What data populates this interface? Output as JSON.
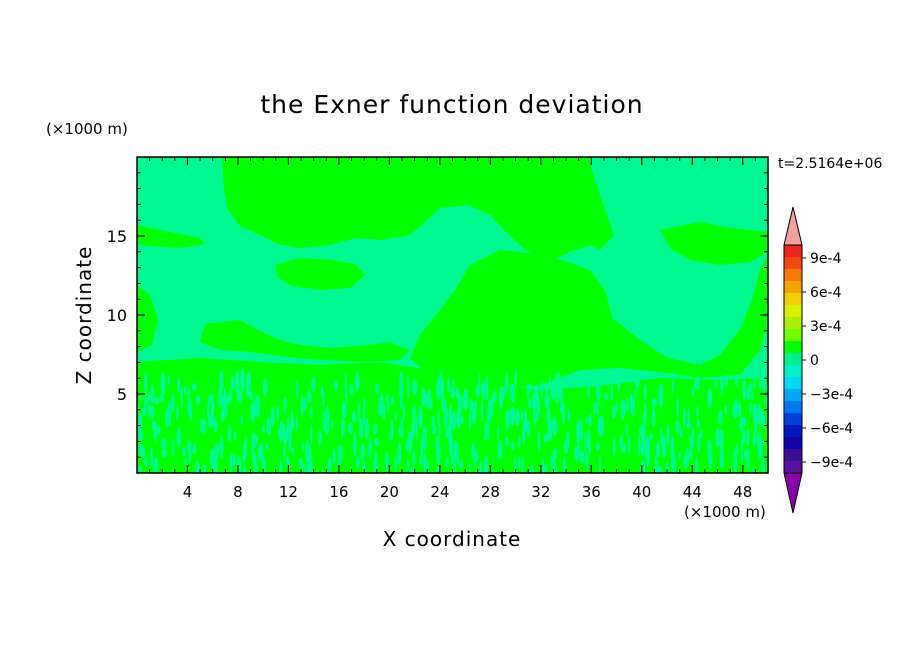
{
  "chart_data": {
    "type": "heatmap",
    "title": "the Exner function deviation",
    "xlabel": "X coordinate",
    "ylabel": "Z coordinate",
    "x_unit": "(×1000 m)",
    "y_unit": "(×1000 m)",
    "time_label": "t=2.5164e+06",
    "xlim": [
      0,
      50
    ],
    "ylim": [
      0,
      20
    ],
    "x_ticks": [
      4,
      8,
      12,
      16,
      20,
      24,
      28,
      32,
      36,
      40,
      44,
      48
    ],
    "y_ticks": [
      5,
      10,
      15
    ],
    "colorbar": {
      "levels": [
        -0.0009,
        -0.0006,
        -0.0003,
        0,
        0.0003,
        0.0006,
        0.0009
      ],
      "labels": [
        "9e-4",
        "6e-4",
        "3e-4",
        "0",
        "−3e-4",
        "−6e-4",
        "−9e-4"
      ],
      "colors_top_to_bottom": [
        "#e8281e",
        "#f04a12",
        "#f57a0a",
        "#f5a500",
        "#f0d000",
        "#d8f000",
        "#a8f000",
        "#70ff00",
        "#00ff00",
        "#00f090",
        "#00f0c8",
        "#00d8f0",
        "#00a8f0",
        "#0078f0",
        "#0040d8",
        "#0018c0",
        "#1400a8",
        "#3a1090",
        "#5a10a0"
      ],
      "over_color": "#f5a0a0",
      "under_color": "#8a00aa"
    },
    "field_colors": {
      "background": "#00f890",
      "positive": "#00ff00"
    }
  }
}
